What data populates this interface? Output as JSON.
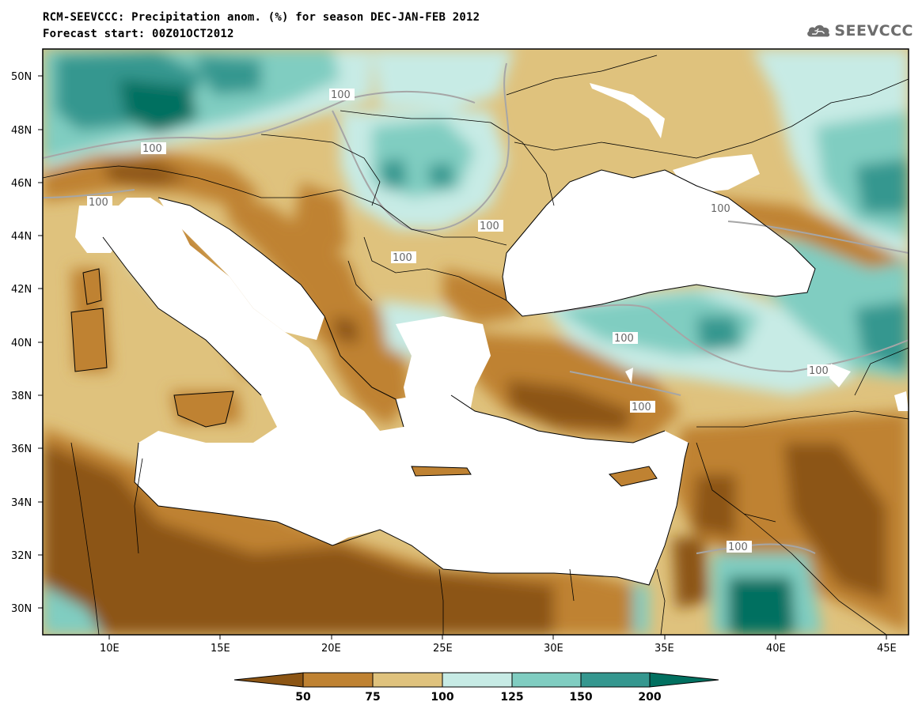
{
  "header": {
    "title_line1": "RCM-SEEVCCC: Precipitation anom. (%) for season DEC-JAN-FEB 2012",
    "title_line2": "Forecast start: 00Z01OCT2012"
  },
  "logo": {
    "text": "SEEVCCC",
    "icon": "cloud-icon",
    "color": "#6d6d6d"
  },
  "map": {
    "lon_range": [
      7,
      46
    ],
    "lat_range": [
      29,
      51
    ],
    "x_ticks": [
      "10E",
      "15E",
      "20E",
      "25E",
      "30E",
      "35E",
      "40E",
      "45E"
    ],
    "y_ticks": [
      "50N",
      "48N",
      "46N",
      "44N",
      "42N",
      "40N",
      "38N",
      "36N",
      "34N",
      "32N",
      "30N"
    ],
    "contour_value_label": "100",
    "sea_color": "#ffffff",
    "contour_line_color": "#a6a6a6"
  },
  "legend": {
    "colors": [
      "#8c5514",
      "#bf8232",
      "#dfc27d",
      "#c7ebe5",
      "#80cdc1",
      "#35978f",
      "#017060"
    ],
    "boundaries": [
      "50",
      "75",
      "100",
      "125",
      "150",
      "200"
    ]
  }
}
